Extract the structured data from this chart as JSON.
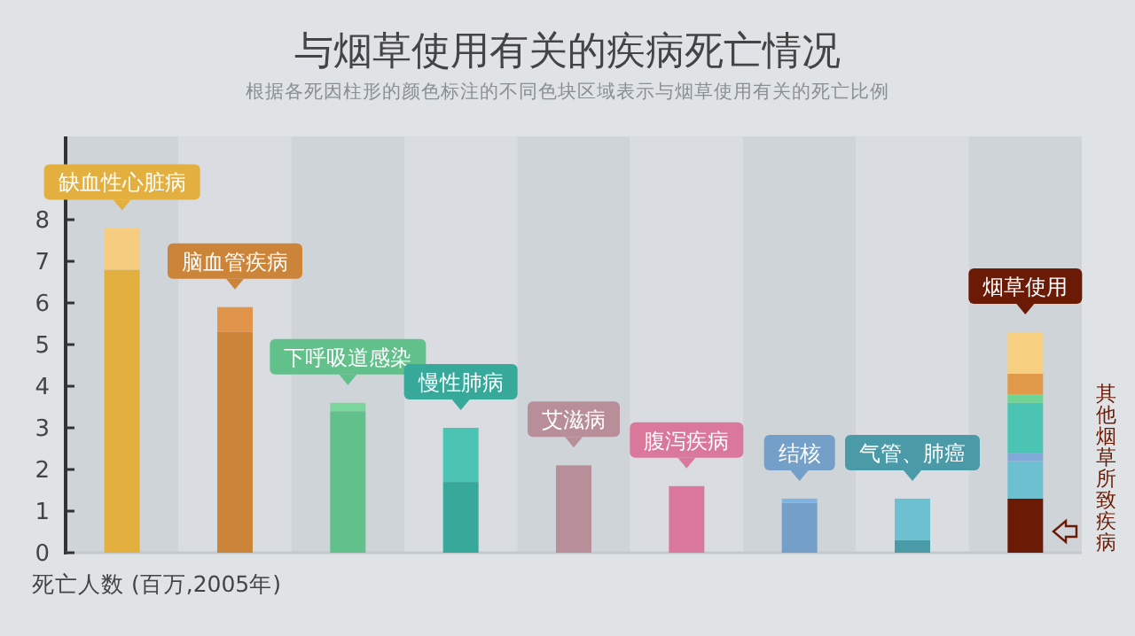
{
  "chart_data": {
    "type": "bar",
    "stacked": true,
    "title": "与烟草使用有关的疾病死亡情况",
    "subtitle": "根据各死因柱形的颜色标注的不同色块区域表示与烟草使用有关的死亡比例",
    "ylabel": "死亡人数 (百万,2005年)",
    "categories": [
      "缺血性心脏病",
      "脑血管疾病",
      "下呼吸道感染",
      "慢性肺病",
      "艾滋病",
      "腹泻疾病",
      "结核",
      "气管、肺癌",
      "烟草使用"
    ],
    "ylim": [
      0,
      10
    ],
    "yticks": [
      0,
      1,
      2,
      3,
      4,
      5,
      6,
      7,
      8
    ],
    "series": [
      {
        "values": [
          6.8,
          5.3,
          3.4,
          1.7,
          2.1,
          1.6,
          1.2,
          0.3,
          1.3
        ],
        "colors": [
          "#e3b040",
          "#cc8438",
          "#62c08a",
          "#37a99b",
          "#b88f98",
          "#d9789a",
          "#739fc8",
          "#4b9aa8",
          "#6b1a05"
        ]
      },
      {
        "values": [
          1.0,
          0.6,
          0.2,
          1.3,
          null,
          null,
          0.1,
          1.0,
          0.9
        ],
        "colors": [
          "#f5cc80",
          "#e0954a",
          "#7bd69c",
          "#4cc4b4",
          null,
          null,
          "#80b4e0",
          "#6cc0d0",
          "#6cc0d0"
        ]
      },
      {
        "values": [
          null,
          null,
          null,
          null,
          null,
          null,
          null,
          null,
          0.2
        ],
        "color": "#80a8d8"
      },
      {
        "values": [
          null,
          null,
          null,
          null,
          null,
          null,
          null,
          null,
          1.2
        ],
        "color": "#4cc4b4"
      },
      {
        "values": [
          null,
          null,
          null,
          null,
          null,
          null,
          null,
          null,
          0.2
        ],
        "color": "#6fd494"
      },
      {
        "values": [
          null,
          null,
          null,
          null,
          null,
          null,
          null,
          null,
          0.5
        ],
        "color": "#e09a4a"
      },
      {
        "values": [
          null,
          null,
          null,
          null,
          null,
          null,
          null,
          null,
          1.0
        ],
        "color": "#f6cf80"
      }
    ],
    "annotations": [
      "其他烟草所致疾病"
    ]
  }
}
